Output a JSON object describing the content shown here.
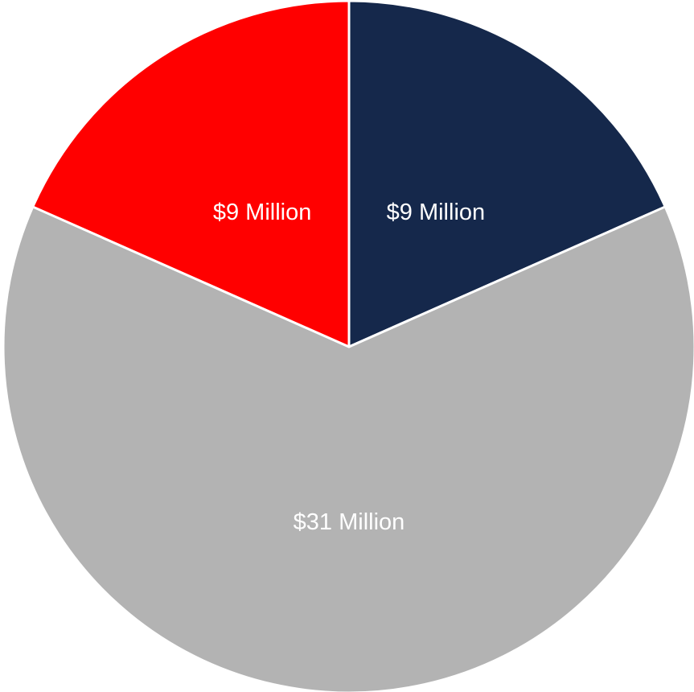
{
  "chart_data": {
    "type": "pie",
    "title": "",
    "start_angle_deg": 0,
    "direction": "clockwise",
    "slices": [
      {
        "label": "$9 Million",
        "value": 9,
        "color": "#15284B"
      },
      {
        "label": "$31 Million",
        "value": 31,
        "color": "#B3B3B3"
      },
      {
        "label": "$9 Million",
        "value": 9,
        "color": "#FF0000"
      }
    ],
    "legend": "none",
    "separator_color": "#FFFFFF"
  }
}
